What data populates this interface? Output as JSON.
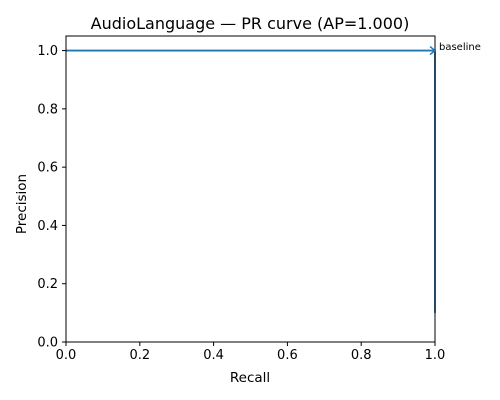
{
  "chart_data": {
    "type": "line",
    "title": "AudioLanguage — PR curve (AP=1.000)",
    "xlabel": "Recall",
    "ylabel": "Precision",
    "xlim": [
      0.0,
      1.0
    ],
    "ylim": [
      0.0,
      1.05
    ],
    "xticks": [
      "0.0",
      "0.2",
      "0.4",
      "0.6",
      "0.8",
      "1.0"
    ],
    "yticks": [
      "0.0",
      "0.2",
      "0.4",
      "0.6",
      "0.8",
      "1.0"
    ],
    "grid": false,
    "series": [
      {
        "x": [
          0.0,
          1.0,
          1.0
        ],
        "y": [
          1.0,
          1.0,
          0.1
        ],
        "color": "#1f77b4"
      }
    ],
    "annotations": [
      {
        "text": "baseline",
        "x": 1.0,
        "y": 1.0,
        "style": "arrow"
      }
    ]
  }
}
